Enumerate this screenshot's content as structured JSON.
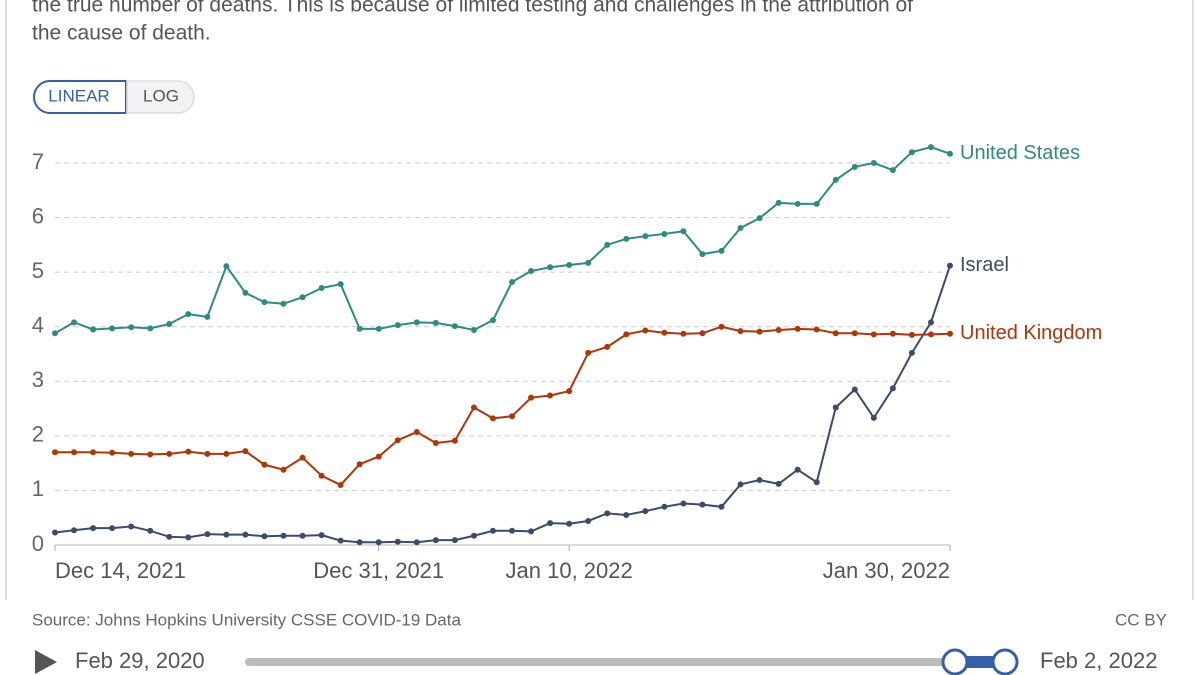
{
  "description": [
    "the true number of deaths. This is because of limited testing and challenges in the attribution of",
    "the cause of death."
  ],
  "controls": {
    "linear": "LINEAR",
    "log": "LOG"
  },
  "source": "Source: Johns Hopkins University CSSE COVID-19 Data",
  "license": "CC BY",
  "timeline": {
    "start": "Feb 29, 2020",
    "end": "Feb 2, 2022"
  },
  "chart_data": {
    "type": "line",
    "x": [
      "2021-12-14",
      "2021-12-15",
      "2021-12-16",
      "2021-12-17",
      "2021-12-18",
      "2021-12-19",
      "2021-12-20",
      "2021-12-21",
      "2021-12-22",
      "2021-12-23",
      "2021-12-24",
      "2021-12-25",
      "2021-12-26",
      "2021-12-27",
      "2021-12-28",
      "2021-12-29",
      "2021-12-30",
      "2021-12-31",
      "2022-01-01",
      "2022-01-02",
      "2022-01-03",
      "2022-01-04",
      "2022-01-05",
      "2022-01-06",
      "2022-01-07",
      "2022-01-08",
      "2022-01-09",
      "2022-01-10",
      "2022-01-11",
      "2022-01-12",
      "2022-01-13",
      "2022-01-14",
      "2022-01-15",
      "2022-01-16",
      "2022-01-17",
      "2022-01-18",
      "2022-01-19",
      "2022-01-20",
      "2022-01-21",
      "2022-01-22",
      "2022-01-23",
      "2022-01-24",
      "2022-01-25",
      "2022-01-26",
      "2022-01-27",
      "2022-01-28",
      "2022-01-29",
      "2022-01-30"
    ],
    "series": [
      {
        "name": "United States",
        "color": "#2e8b80",
        "values": [
          3.88,
          4.08,
          3.95,
          3.97,
          3.99,
          3.97,
          4.05,
          4.23,
          4.18,
          5.11,
          4.62,
          4.45,
          4.42,
          4.54,
          4.71,
          4.78,
          3.96,
          3.96,
          4.03,
          4.08,
          4.07,
          4.01,
          3.94,
          4.12,
          4.82,
          5.02,
          5.09,
          5.13,
          5.17,
          5.5,
          5.61,
          5.66,
          5.7,
          5.75,
          5.33,
          5.39,
          5.81,
          5.99,
          6.27,
          6.25,
          6.25,
          6.69,
          6.93,
          7.0,
          6.87,
          7.2,
          7.29,
          7.17
        ]
      },
      {
        "name": "Israel",
        "color": "#3c4a6b",
        "values": [
          0.23,
          0.27,
          0.31,
          0.31,
          0.34,
          0.26,
          0.15,
          0.14,
          0.2,
          0.19,
          0.19,
          0.16,
          0.17,
          0.17,
          0.18,
          0.08,
          0.05,
          0.05,
          0.06,
          0.05,
          0.09,
          0.09,
          0.17,
          0.26,
          0.26,
          0.25,
          0.4,
          0.39,
          0.44,
          0.58,
          0.55,
          0.62,
          0.7,
          0.76,
          0.74,
          0.7,
          1.11,
          1.19,
          1.12,
          1.38,
          1.15,
          2.52,
          2.85,
          2.33,
          2.87,
          3.52,
          4.08,
          5.12
        ]
      },
      {
        "name": "United Kingdom",
        "color": "#b13507",
        "values": [
          1.7,
          1.7,
          1.7,
          1.69,
          1.67,
          1.66,
          1.67,
          1.71,
          1.67,
          1.67,
          1.72,
          1.47,
          1.38,
          1.6,
          1.27,
          1.1,
          1.48,
          1.62,
          1.92,
          2.07,
          1.87,
          1.91,
          2.52,
          2.32,
          2.36,
          2.7,
          2.74,
          2.82,
          3.52,
          3.63,
          3.86,
          3.93,
          3.89,
          3.87,
          3.88,
          4.0,
          3.92,
          3.91,
          3.94,
          3.96,
          3.95,
          3.88,
          3.88,
          3.86,
          3.87,
          3.85,
          3.86,
          3.87
        ]
      }
    ],
    "xlim": [
      "2021-12-14",
      "2022-01-30"
    ],
    "xticks": [
      {
        "value": "2021-12-14",
        "label": "Dec 14, 2021"
      },
      {
        "value": "2021-12-31",
        "label": "Dec 31, 2021"
      },
      {
        "value": "2022-01-10",
        "label": "Jan 10, 2022"
      },
      {
        "value": "2022-01-30",
        "label": "Jan 30, 2022"
      }
    ],
    "ylim": [
      0,
      7
    ],
    "yticks": [
      0,
      1,
      2,
      3,
      4,
      5,
      6,
      7
    ],
    "grid": true
  }
}
